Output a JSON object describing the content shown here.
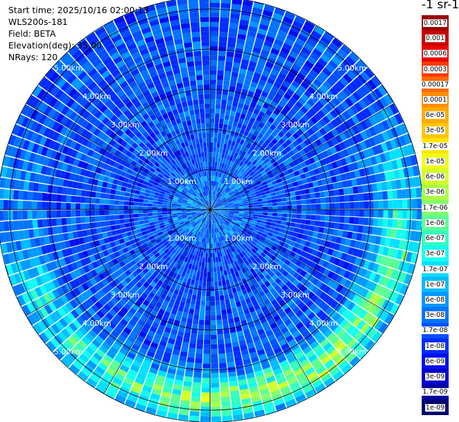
{
  "header": {
    "start_time": "Start time: 2025/10/16 02:00:18",
    "instrument": "WLS200s-181",
    "field": "Field: BETA",
    "elevation": "Elevation(deg): 35.00",
    "nrays": "NRays: 120"
  },
  "colorbar": {
    "title": "-1 sr-1",
    "labels": [
      "0.0017",
      "0.001",
      "0.0006",
      "0.0003",
      "0.00017",
      "0.0001",
      "6e-05",
      "3e-05",
      "1.7e-05",
      "1e-05",
      "6e-06",
      "3e-06",
      "1.7e-06",
      "1e-06",
      "6e-07",
      "3e-07",
      "1.7e-07",
      "1e-07",
      "6e-08",
      "3e-08",
      "1.7e-08",
      "1e-08",
      "6e-09",
      "3e-09",
      "1.7e-09",
      "1e-09"
    ],
    "colors": [
      "#9a0000",
      "#c80000",
      "#ee0000",
      "#ff3b00",
      "#ff6a00",
      "#ff8d00",
      "#ffab00",
      "#ffc800",
      "#ffe500",
      "#f0ff10",
      "#d0ff28",
      "#acff45",
      "#86ff6c",
      "#5cff95",
      "#33ffc0",
      "#14fff0",
      "#00e0ff",
      "#00bcff",
      "#0098ff",
      "#0074ff",
      "#0050ff",
      "#002cff",
      "#0010ee",
      "#0000cc",
      "#00009d",
      "#000070"
    ]
  },
  "chart_data": {
    "type": "heatmap",
    "projection": "polar PPI",
    "field": "BETA",
    "elevation_deg": 35.0,
    "n_rays": 120,
    "range_ring_labels": [
      "1.00km",
      "2.00km",
      "3.00km",
      "4.00km",
      "5.00km"
    ],
    "range_rings_km": [
      1,
      2,
      3,
      4,
      5
    ],
    "max_range_km": 5.3,
    "azimuth_spoke_step_deg": 30,
    "color_scale": "log",
    "value_range": [
      1e-09,
      0.0017
    ],
    "structure": [
      {
        "range_km": [
          0,
          1.0
        ],
        "description": "speckled, mostly blue/cyan",
        "typical_value": 3e-08
      },
      {
        "range_km": [
          1.0,
          4.0
        ],
        "description": "blue with cyan streaks",
        "typical_value": 1.7e-08
      },
      {
        "range_km": [
          4.0,
          5.3
        ],
        "sector": "south-west to south-east",
        "description": "cyan to yellow-green enhanced band",
        "typical_value": 1.7e-06
      }
    ]
  }
}
